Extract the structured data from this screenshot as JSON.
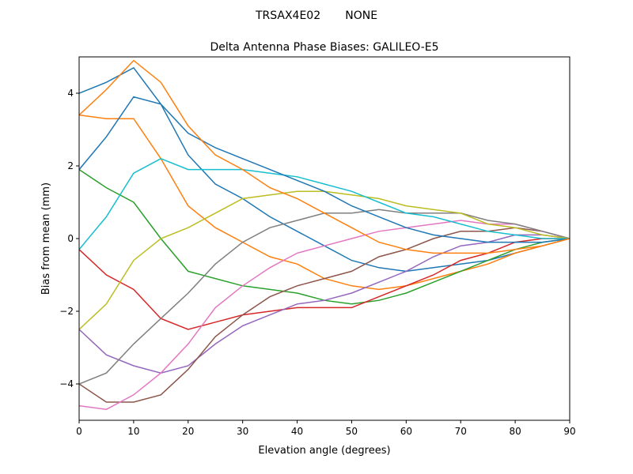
{
  "chart_data": {
    "type": "line",
    "suptitle": "TRSAX4E02       NONE",
    "title": "Delta Antenna Phase Biases: GALILEO-E5",
    "xlabel": "Elevation angle (degrees)",
    "ylabel": "Bias from mean (mm)",
    "xlim": [
      0,
      90
    ],
    "ylim": [
      -5,
      5
    ],
    "xticks": [
      0,
      10,
      20,
      30,
      40,
      50,
      60,
      70,
      80,
      90
    ],
    "yticks": [
      -4,
      -2,
      0,
      2,
      4
    ],
    "grid": false,
    "legend": "none",
    "colors": [
      "#1f77b4",
      "#ff7f0e",
      "#2ca02c",
      "#d62728",
      "#9467bd",
      "#8c564b",
      "#e377c2",
      "#7f7f7f",
      "#bcbd22",
      "#17becf"
    ],
    "x": [
      0,
      5,
      10,
      15,
      20,
      25,
      30,
      35,
      40,
      45,
      50,
      55,
      60,
      65,
      70,
      75,
      80,
      85,
      90
    ],
    "series": [
      {
        "values": [
          4.0,
          4.3,
          4.7,
          3.7,
          2.3,
          1.5,
          1.1,
          0.6,
          0.2,
          -0.2,
          -0.6,
          -0.8,
          -0.9,
          -0.8,
          -0.7,
          -0.6,
          -0.4,
          -0.2,
          0
        ]
      },
      {
        "values": [
          3.4,
          3.3,
          3.3,
          2.2,
          0.9,
          0.3,
          -0.1,
          -0.5,
          -0.7,
          -1.1,
          -1.3,
          -1.4,
          -1.3,
          -1.1,
          -0.9,
          -0.7,
          -0.4,
          -0.2,
          0
        ]
      },
      {
        "values": [
          1.9,
          1.4,
          1.0,
          0.0,
          -0.9,
          -1.1,
          -1.3,
          -1.4,
          -1.5,
          -1.7,
          -1.8,
          -1.7,
          -1.5,
          -1.2,
          -0.9,
          -0.6,
          -0.3,
          -0.1,
          0
        ]
      },
      {
        "values": [
          -0.3,
          -1.0,
          -1.4,
          -2.2,
          -2.5,
          -2.3,
          -2.1,
          -2.0,
          -1.9,
          -1.9,
          -1.9,
          -1.6,
          -1.3,
          -1.0,
          -0.6,
          -0.4,
          -0.1,
          0.0,
          0
        ]
      },
      {
        "values": [
          -2.5,
          -3.2,
          -3.5,
          -3.7,
          -3.5,
          -2.9,
          -2.4,
          -2.1,
          -1.8,
          -1.7,
          -1.5,
          -1.2,
          -0.9,
          -0.5,
          -0.2,
          -0.1,
          0.1,
          0.1,
          0
        ]
      },
      {
        "values": [
          -4.0,
          -4.5,
          -4.5,
          -4.3,
          -3.6,
          -2.7,
          -2.1,
          -1.6,
          -1.3,
          -1.1,
          -0.9,
          -0.5,
          -0.3,
          0.0,
          0.2,
          0.2,
          0.3,
          0.2,
          0
        ]
      },
      {
        "values": [
          -4.6,
          -4.7,
          -4.3,
          -3.7,
          -2.9,
          -1.9,
          -1.3,
          -0.8,
          -0.4,
          -0.2,
          0.0,
          0.2,
          0.3,
          0.4,
          0.5,
          0.4,
          0.4,
          0.2,
          0
        ]
      },
      {
        "values": [
          -4.0,
          -3.7,
          -2.9,
          -2.2,
          -1.5,
          -0.7,
          -0.1,
          0.3,
          0.5,
          0.7,
          0.7,
          0.8,
          0.7,
          0.7,
          0.7,
          0.5,
          0.4,
          0.2,
          0
        ]
      },
      {
        "values": [
          -2.5,
          -1.8,
          -0.6,
          0.0,
          0.3,
          0.7,
          1.1,
          1.2,
          1.3,
          1.3,
          1.2,
          1.1,
          0.9,
          0.8,
          0.7,
          0.4,
          0.3,
          0.1,
          0
        ]
      },
      {
        "values": [
          -0.3,
          0.6,
          1.8,
          2.2,
          1.9,
          1.9,
          1.9,
          1.8,
          1.7,
          1.5,
          1.3,
          1.0,
          0.7,
          0.6,
          0.4,
          0.2,
          0.1,
          0.0,
          0
        ]
      },
      {
        "values": [
          1.9,
          2.8,
          3.9,
          3.7,
          2.9,
          2.5,
          2.2,
          1.9,
          1.6,
          1.3,
          0.9,
          0.6,
          0.3,
          0.1,
          0.0,
          -0.1,
          -0.1,
          -0.1,
          0
        ]
      },
      {
        "values": [
          3.4,
          4.1,
          4.9,
          4.3,
          3.1,
          2.3,
          1.9,
          1.4,
          1.1,
          0.7,
          0.3,
          -0.1,
          -0.3,
          -0.4,
          -0.4,
          -0.4,
          -0.3,
          -0.2,
          0
        ]
      }
    ]
  }
}
